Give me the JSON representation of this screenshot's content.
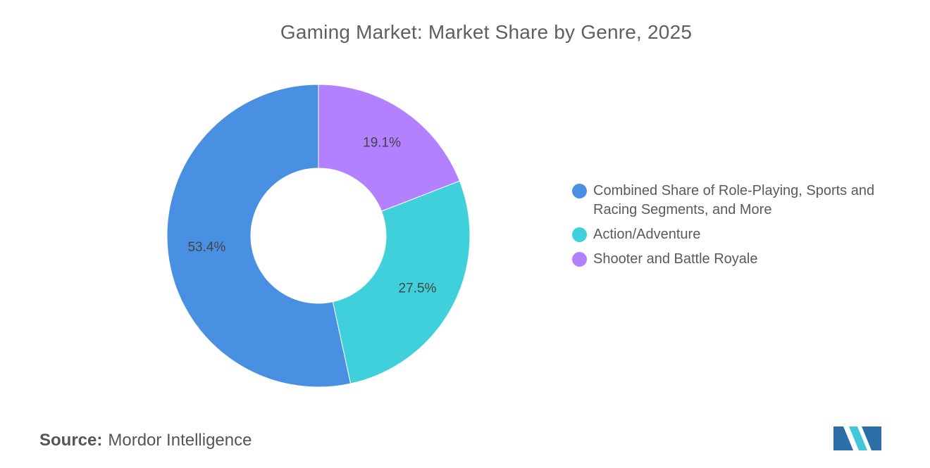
{
  "title": "Gaming Market: Market Share by Genre, 2025",
  "source": {
    "prefix": "Source:",
    "name": "Mordor Intelligence"
  },
  "chart_data": {
    "type": "pie",
    "donut": true,
    "title": "Gaming Market: Market Share by Genre, 2025",
    "slices": [
      {
        "label": "Combined Share of Role-Playing, Sports and Racing Segments, and More",
        "value": 53.4,
        "display": "53.4%",
        "color": "#4a90e2"
      },
      {
        "label": "Action/Adventure",
        "value": 27.5,
        "display": "27.5%",
        "color": "#3fd0db"
      },
      {
        "label": "Shooter and Battle Royale",
        "value": 19.1,
        "display": "19.1%",
        "color": "#b380ff"
      }
    ],
    "legend_placement": "right"
  }
}
